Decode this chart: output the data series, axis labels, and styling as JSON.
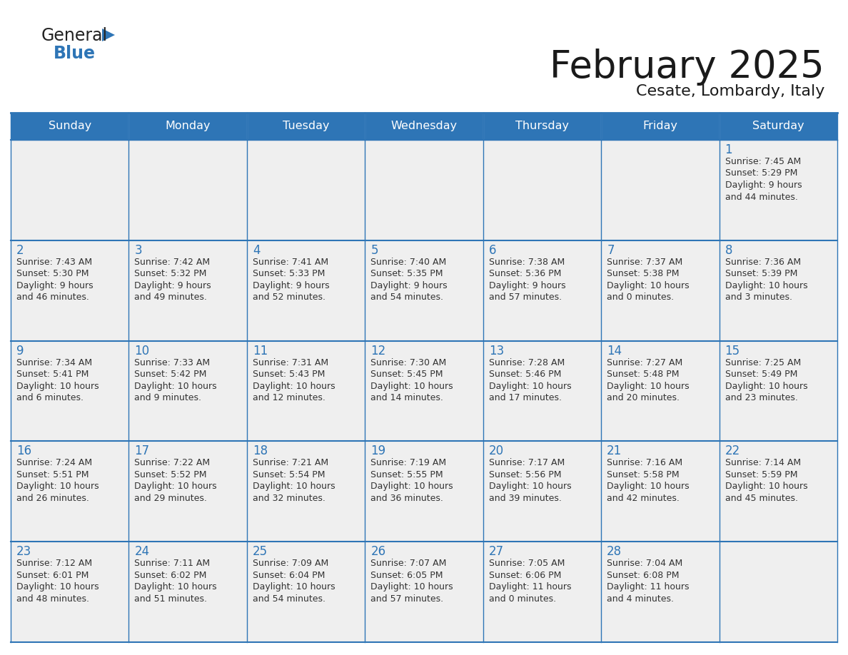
{
  "title": "February 2025",
  "subtitle": "Cesate, Lombardy, Italy",
  "days_of_week": [
    "Sunday",
    "Monday",
    "Tuesday",
    "Wednesday",
    "Thursday",
    "Friday",
    "Saturday"
  ],
  "header_bg": "#2E75B6",
  "header_text": "#FFFFFF",
  "cell_bg": "#EFEFEF",
  "cell_bg_empty": "#FFFFFF",
  "border_color": "#2E75B6",
  "day_number_color": "#2E75B6",
  "cell_text_color": "#333333",
  "title_color": "#1a1a1a",
  "subtitle_color": "#1a1a1a",
  "logo_general_color": "#222222",
  "logo_blue_color": "#2E75B6",
  "calendar_data": {
    "1": {
      "sunrise": "7:45 AM",
      "sunset": "5:29 PM",
      "daylight_line1": "Daylight: 9 hours",
      "daylight_line2": "and 44 minutes."
    },
    "2": {
      "sunrise": "7:43 AM",
      "sunset": "5:30 PM",
      "daylight_line1": "Daylight: 9 hours",
      "daylight_line2": "and 46 minutes."
    },
    "3": {
      "sunrise": "7:42 AM",
      "sunset": "5:32 PM",
      "daylight_line1": "Daylight: 9 hours",
      "daylight_line2": "and 49 minutes."
    },
    "4": {
      "sunrise": "7:41 AM",
      "sunset": "5:33 PM",
      "daylight_line1": "Daylight: 9 hours",
      "daylight_line2": "and 52 minutes."
    },
    "5": {
      "sunrise": "7:40 AM",
      "sunset": "5:35 PM",
      "daylight_line1": "Daylight: 9 hours",
      "daylight_line2": "and 54 minutes."
    },
    "6": {
      "sunrise": "7:38 AM",
      "sunset": "5:36 PM",
      "daylight_line1": "Daylight: 9 hours",
      "daylight_line2": "and 57 minutes."
    },
    "7": {
      "sunrise": "7:37 AM",
      "sunset": "5:38 PM",
      "daylight_line1": "Daylight: 10 hours",
      "daylight_line2": "and 0 minutes."
    },
    "8": {
      "sunrise": "7:36 AM",
      "sunset": "5:39 PM",
      "daylight_line1": "Daylight: 10 hours",
      "daylight_line2": "and 3 minutes."
    },
    "9": {
      "sunrise": "7:34 AM",
      "sunset": "5:41 PM",
      "daylight_line1": "Daylight: 10 hours",
      "daylight_line2": "and 6 minutes."
    },
    "10": {
      "sunrise": "7:33 AM",
      "sunset": "5:42 PM",
      "daylight_line1": "Daylight: 10 hours",
      "daylight_line2": "and 9 minutes."
    },
    "11": {
      "sunrise": "7:31 AM",
      "sunset": "5:43 PM",
      "daylight_line1": "Daylight: 10 hours",
      "daylight_line2": "and 12 minutes."
    },
    "12": {
      "sunrise": "7:30 AM",
      "sunset": "5:45 PM",
      "daylight_line1": "Daylight: 10 hours",
      "daylight_line2": "and 14 minutes."
    },
    "13": {
      "sunrise": "7:28 AM",
      "sunset": "5:46 PM",
      "daylight_line1": "Daylight: 10 hours",
      "daylight_line2": "and 17 minutes."
    },
    "14": {
      "sunrise": "7:27 AM",
      "sunset": "5:48 PM",
      "daylight_line1": "Daylight: 10 hours",
      "daylight_line2": "and 20 minutes."
    },
    "15": {
      "sunrise": "7:25 AM",
      "sunset": "5:49 PM",
      "daylight_line1": "Daylight: 10 hours",
      "daylight_line2": "and 23 minutes."
    },
    "16": {
      "sunrise": "7:24 AM",
      "sunset": "5:51 PM",
      "daylight_line1": "Daylight: 10 hours",
      "daylight_line2": "and 26 minutes."
    },
    "17": {
      "sunrise": "7:22 AM",
      "sunset": "5:52 PM",
      "daylight_line1": "Daylight: 10 hours",
      "daylight_line2": "and 29 minutes."
    },
    "18": {
      "sunrise": "7:21 AM",
      "sunset": "5:54 PM",
      "daylight_line1": "Daylight: 10 hours",
      "daylight_line2": "and 32 minutes."
    },
    "19": {
      "sunrise": "7:19 AM",
      "sunset": "5:55 PM",
      "daylight_line1": "Daylight: 10 hours",
      "daylight_line2": "and 36 minutes."
    },
    "20": {
      "sunrise": "7:17 AM",
      "sunset": "5:56 PM",
      "daylight_line1": "Daylight: 10 hours",
      "daylight_line2": "and 39 minutes."
    },
    "21": {
      "sunrise": "7:16 AM",
      "sunset": "5:58 PM",
      "daylight_line1": "Daylight: 10 hours",
      "daylight_line2": "and 42 minutes."
    },
    "22": {
      "sunrise": "7:14 AM",
      "sunset": "5:59 PM",
      "daylight_line1": "Daylight: 10 hours",
      "daylight_line2": "and 45 minutes."
    },
    "23": {
      "sunrise": "7:12 AM",
      "sunset": "6:01 PM",
      "daylight_line1": "Daylight: 10 hours",
      "daylight_line2": "and 48 minutes."
    },
    "24": {
      "sunrise": "7:11 AM",
      "sunset": "6:02 PM",
      "daylight_line1": "Daylight: 10 hours",
      "daylight_line2": "and 51 minutes."
    },
    "25": {
      "sunrise": "7:09 AM",
      "sunset": "6:04 PM",
      "daylight_line1": "Daylight: 10 hours",
      "daylight_line2": "and 54 minutes."
    },
    "26": {
      "sunrise": "7:07 AM",
      "sunset": "6:05 PM",
      "daylight_line1": "Daylight: 10 hours",
      "daylight_line2": "and 57 minutes."
    },
    "27": {
      "sunrise": "7:05 AM",
      "sunset": "6:06 PM",
      "daylight_line1": "Daylight: 11 hours",
      "daylight_line2": "and 0 minutes."
    },
    "28": {
      "sunrise": "7:04 AM",
      "sunset": "6:08 PM",
      "daylight_line1": "Daylight: 11 hours",
      "daylight_line2": "and 4 minutes."
    }
  },
  "week_layout": [
    [
      null,
      null,
      null,
      null,
      null,
      null,
      1
    ],
    [
      2,
      3,
      4,
      5,
      6,
      7,
      8
    ],
    [
      9,
      10,
      11,
      12,
      13,
      14,
      15
    ],
    [
      16,
      17,
      18,
      19,
      20,
      21,
      22
    ],
    [
      23,
      24,
      25,
      26,
      27,
      28,
      null
    ]
  ]
}
